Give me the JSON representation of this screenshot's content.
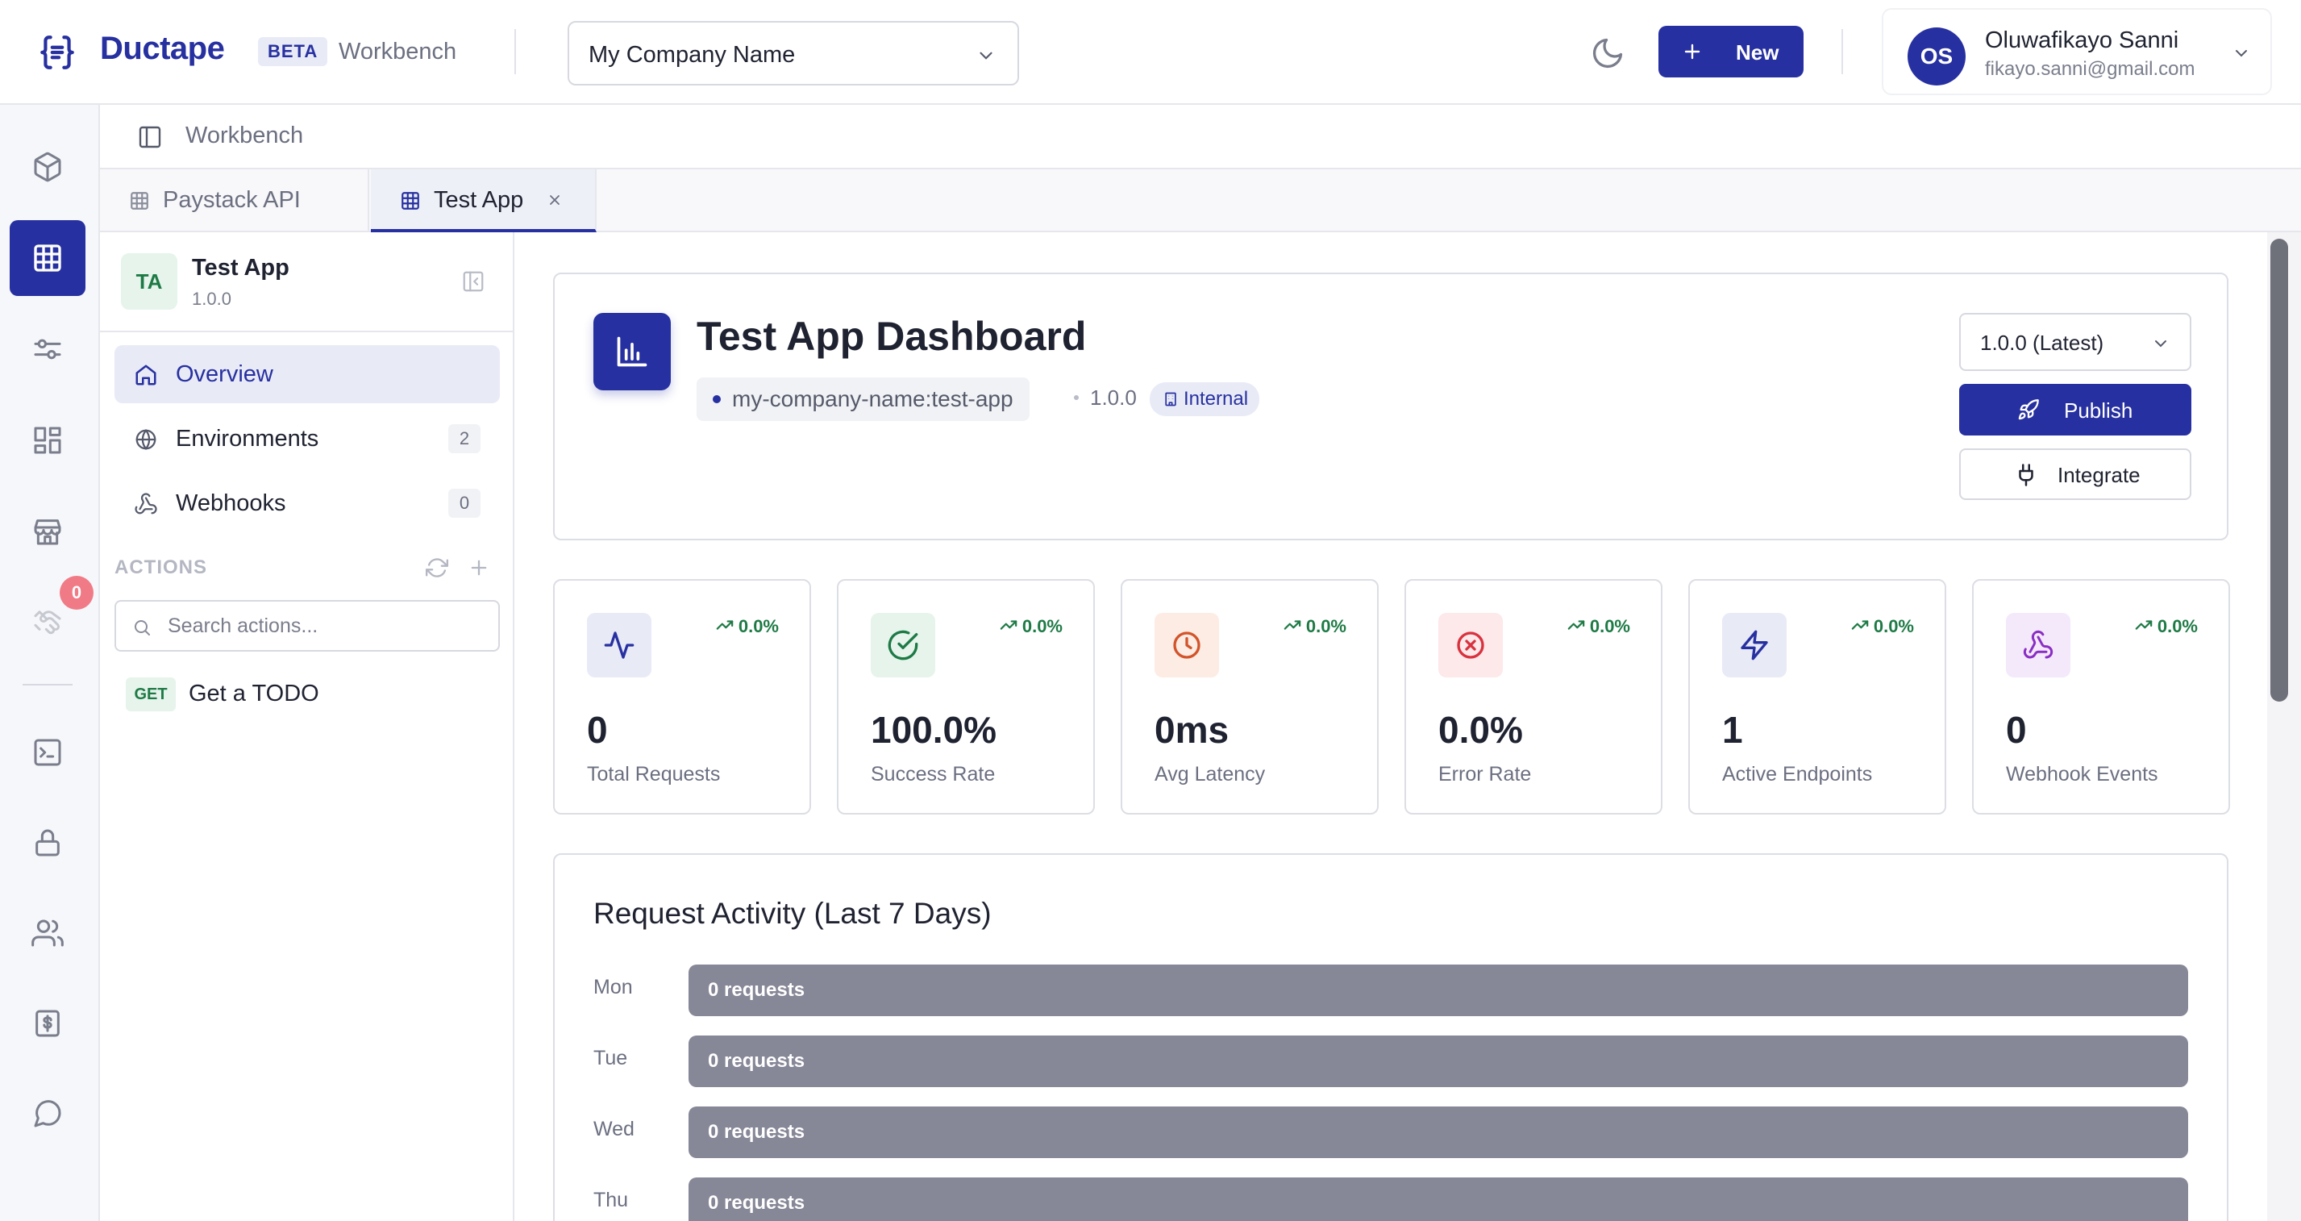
{
  "header": {
    "brand": "Ductape",
    "beta_label": "BETA",
    "section": "Workbench",
    "company_select": "My Company Name",
    "new_button": "New",
    "user": {
      "initials": "OS",
      "name": "Oluwafikayo Sanni",
      "email": "fikayo.sanni@gmail.com"
    }
  },
  "rail": {
    "items": [
      "package-icon",
      "grid-icon",
      "sliders-icon",
      "dashboard-icon",
      "store-icon",
      "handshake-icon",
      "terminal-icon",
      "lock-icon",
      "users-icon",
      "billing-icon",
      "chat-icon"
    ],
    "badge": "0",
    "accent": "#2730a0"
  },
  "breadcrumb": {
    "label": "Workbench"
  },
  "tabs": [
    {
      "label": "Paystack API",
      "active": false
    },
    {
      "label": "Test App",
      "active": true
    }
  ],
  "sidebar": {
    "app": {
      "initials": "TA",
      "name": "Test App",
      "version": "1.0.0"
    },
    "nav": [
      {
        "label": "Overview",
        "icon": "home-icon"
      },
      {
        "label": "Environments",
        "count": "2",
        "icon": "globe-icon"
      },
      {
        "label": "Webhooks",
        "count": "0",
        "icon": "webhook-icon"
      }
    ],
    "actions_heading": "ACTIONS",
    "search_placeholder": "Search actions...",
    "actions": [
      {
        "method": "GET",
        "label": "Get a TODO"
      }
    ]
  },
  "dashboard": {
    "title": "Test App Dashboard",
    "slug": "my-company-name:test-app",
    "version": "1.0.0",
    "visibility": "Internal",
    "version_select": "1.0.0 (Latest)",
    "publish_label": "Publish",
    "integrate_label": "Integrate"
  },
  "stats": [
    {
      "value": "0",
      "label": "Total Requests",
      "trend": "0.0%",
      "icon": "activity-icon",
      "color": "#2730a0"
    },
    {
      "value": "100.0%",
      "label": "Success Rate",
      "trend": "0.0%",
      "icon": "check-circle-icon",
      "color": "#1e7a45"
    },
    {
      "value": "0ms",
      "label": "Avg Latency",
      "trend": "0.0%",
      "icon": "clock-icon",
      "color": "#d2542a"
    },
    {
      "value": "0.0%",
      "label": "Error Rate",
      "trend": "0.0%",
      "icon": "x-circle-icon",
      "color": "#d8323e"
    },
    {
      "value": "1",
      "label": "Active Endpoints",
      "trend": "0.0%",
      "icon": "zap-icon",
      "color": "#2730a0"
    },
    {
      "value": "0",
      "label": "Webhook Events",
      "trend": "0.0%",
      "icon": "webhook-icon",
      "color": "#8a2ec4"
    }
  ],
  "activity": {
    "title": "Request Activity (Last 7 Days)",
    "days": [
      {
        "day": "Mon",
        "label": "0 requests"
      },
      {
        "day": "Tue",
        "label": "0 requests"
      },
      {
        "day": "Wed",
        "label": "0 requests"
      },
      {
        "day": "Thu",
        "label": "0 requests"
      }
    ]
  }
}
